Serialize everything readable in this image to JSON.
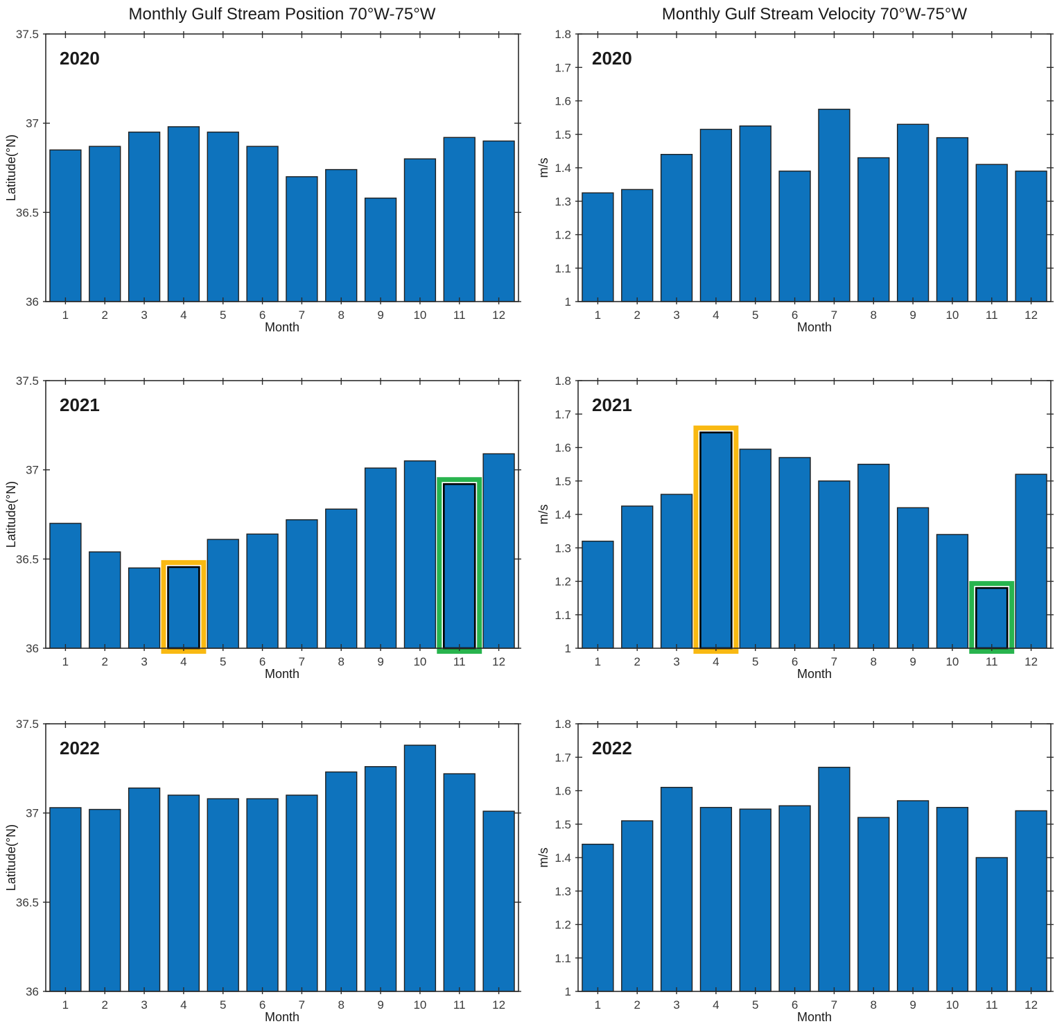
{
  "figure_titles": {
    "left_column": "Monthly Gulf Stream Position 70°W-75°W",
    "right_column": "Monthly Gulf Stream Velocity 70°W-75°W"
  },
  "colors": {
    "bar_fill": "#0E73BD",
    "bar_edge": "#1f1f1f",
    "axis": "#2b2b2b",
    "text": "#1a1a1a",
    "tick_label": "#3a3a3a",
    "highlight_yellow": "#F9B912",
    "highlight_green": "#28B44E",
    "highlight_inner": "#000000",
    "background": "#ffffff"
  },
  "chart_data": [
    {
      "id": "position-2020",
      "type": "bar",
      "year": "2020",
      "title": "Monthly Gulf Stream Position 70°W-75°W",
      "xlabel": "Month",
      "ylabel": "Latitude(°N)",
      "categories": [
        "1",
        "2",
        "3",
        "4",
        "5",
        "6",
        "7",
        "8",
        "9",
        "10",
        "11",
        "12"
      ],
      "values": [
        36.85,
        36.87,
        36.95,
        36.98,
        36.95,
        36.87,
        36.7,
        36.74,
        36.58,
        36.8,
        36.92,
        36.9
      ],
      "ylim": [
        36,
        37.5
      ],
      "yticks": [
        "36",
        "36.5",
        "37",
        "37.5"
      ],
      "grid": false,
      "legend": null,
      "highlights": []
    },
    {
      "id": "velocity-2020",
      "type": "bar",
      "year": "2020",
      "title": "Monthly Gulf Stream Velocity 70°W-75°W",
      "xlabel": "Month",
      "ylabel": "m/s",
      "categories": [
        "1",
        "2",
        "3",
        "4",
        "5",
        "6",
        "7",
        "8",
        "9",
        "10",
        "11",
        "12"
      ],
      "values": [
        1.325,
        1.335,
        1.44,
        1.515,
        1.525,
        1.39,
        1.575,
        1.43,
        1.53,
        1.49,
        1.41,
        1.39
      ],
      "ylim": [
        1,
        1.8
      ],
      "yticks": [
        "1",
        "1.1",
        "1.2",
        "1.3",
        "1.4",
        "1.5",
        "1.6",
        "1.7",
        "1.8"
      ],
      "grid": false,
      "legend": null,
      "highlights": []
    },
    {
      "id": "position-2021",
      "type": "bar",
      "year": "2021",
      "title": "",
      "xlabel": "Month",
      "ylabel": "Latitude(°N)",
      "categories": [
        "1",
        "2",
        "3",
        "4",
        "5",
        "6",
        "7",
        "8",
        "9",
        "10",
        "11",
        "12"
      ],
      "values": [
        36.7,
        36.54,
        36.45,
        36.455,
        36.61,
        36.64,
        36.72,
        36.78,
        37.01,
        37.05,
        36.92,
        37.09
      ],
      "ylim": [
        36,
        37.5
      ],
      "yticks": [
        "36",
        "36.5",
        "37",
        "37.5"
      ],
      "grid": false,
      "legend": null,
      "highlights": [
        {
          "month": 4,
          "color_key": "highlight_yellow"
        },
        {
          "month": 11,
          "color_key": "highlight_green"
        }
      ]
    },
    {
      "id": "velocity-2021",
      "type": "bar",
      "year": "2021",
      "title": "",
      "xlabel": "Month",
      "ylabel": "m/s",
      "categories": [
        "1",
        "2",
        "3",
        "4",
        "5",
        "6",
        "7",
        "8",
        "9",
        "10",
        "11",
        "12"
      ],
      "values": [
        1.32,
        1.425,
        1.46,
        1.645,
        1.595,
        1.57,
        1.5,
        1.55,
        1.42,
        1.34,
        1.18,
        1.52
      ],
      "ylim": [
        1,
        1.8
      ],
      "yticks": [
        "1",
        "1.1",
        "1.2",
        "1.3",
        "1.4",
        "1.5",
        "1.6",
        "1.7",
        "1.8"
      ],
      "grid": false,
      "legend": null,
      "highlights": [
        {
          "month": 4,
          "color_key": "highlight_yellow"
        },
        {
          "month": 11,
          "color_key": "highlight_green"
        }
      ]
    },
    {
      "id": "position-2022",
      "type": "bar",
      "year": "2022",
      "title": "",
      "xlabel": "Month",
      "ylabel": "Latitude(°N)",
      "categories": [
        "1",
        "2",
        "3",
        "4",
        "5",
        "6",
        "7",
        "8",
        "9",
        "10",
        "11",
        "12"
      ],
      "values": [
        37.03,
        37.02,
        37.14,
        37.1,
        37.08,
        37.08,
        37.1,
        37.23,
        37.26,
        37.38,
        37.22,
        37.01
      ],
      "ylim": [
        36,
        37.5
      ],
      "yticks": [
        "36",
        "36.5",
        "37",
        "37.5"
      ],
      "grid": false,
      "legend": null,
      "highlights": []
    },
    {
      "id": "velocity-2022",
      "type": "bar",
      "year": "2022",
      "title": "",
      "xlabel": "Month",
      "ylabel": "m/s",
      "categories": [
        "1",
        "2",
        "3",
        "4",
        "5",
        "6",
        "7",
        "8",
        "9",
        "10",
        "11",
        "12"
      ],
      "values": [
        1.44,
        1.51,
        1.61,
        1.55,
        1.545,
        1.555,
        1.67,
        1.52,
        1.57,
        1.55,
        1.4,
        1.54
      ],
      "ylim": [
        1,
        1.8
      ],
      "yticks": [
        "1",
        "1.1",
        "1.2",
        "1.3",
        "1.4",
        "1.5",
        "1.6",
        "1.7",
        "1.8"
      ],
      "grid": false,
      "legend": null,
      "highlights": []
    }
  ]
}
